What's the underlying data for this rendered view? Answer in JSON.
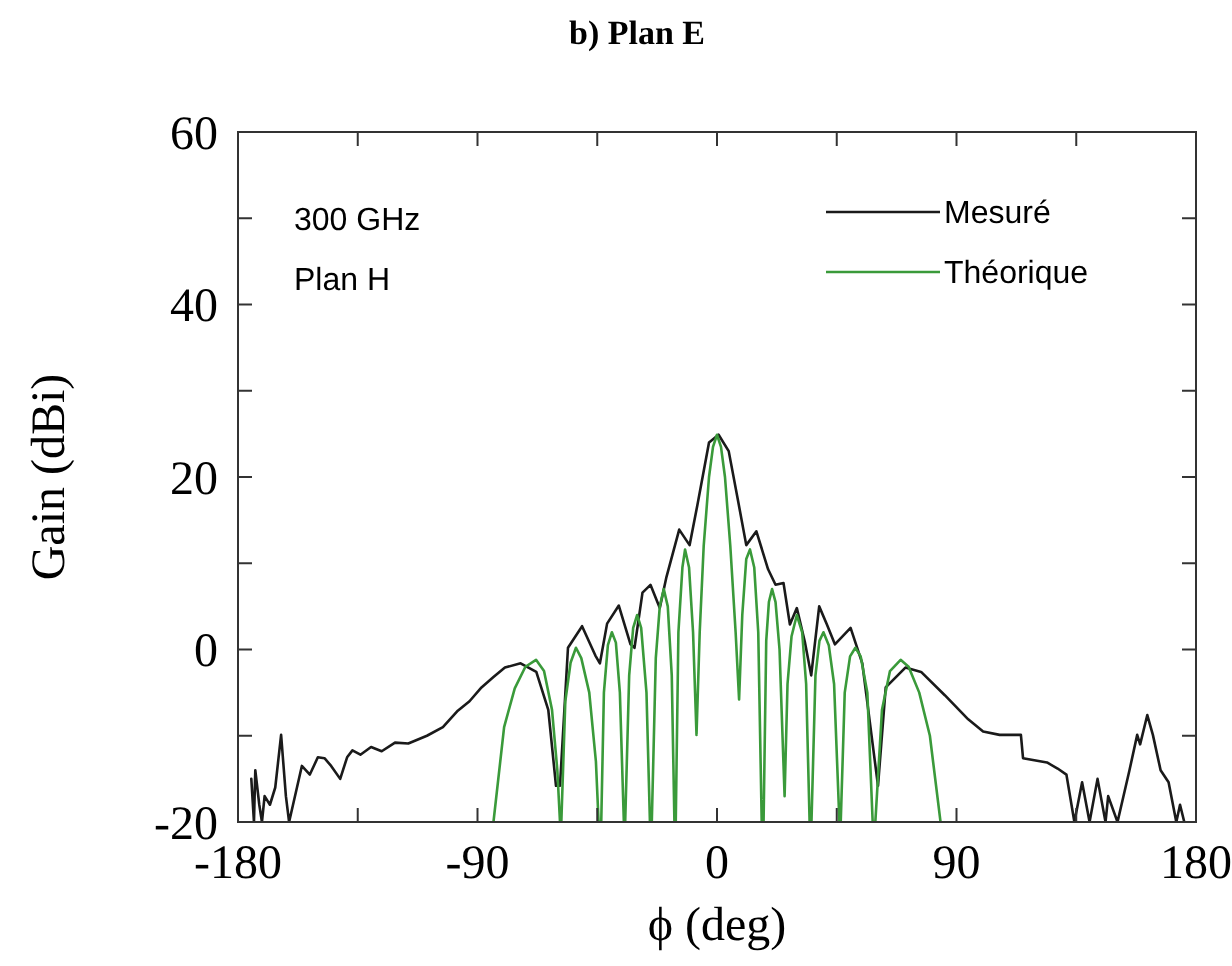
{
  "chart_data": {
    "type": "line",
    "title": "b) Plan E",
    "xlabel": "ϕ (deg)",
    "ylabel": "Gain (dBi)",
    "annotations": [
      "300 GHz",
      "Plan H"
    ],
    "xlim": [
      -180,
      180
    ],
    "ylim": [
      -20,
      60
    ],
    "xticks": [
      -180,
      {
        "value": -135,
        "label": null
      },
      -90,
      {
        "value": -45,
        "label": null
      },
      0,
      {
        "value": 45,
        "label": null
      },
      90,
      {
        "value": 135,
        "label": null
      },
      180
    ],
    "yticks": [
      -20,
      {
        "value": -10,
        "label": null
      },
      0,
      {
        "value": 10,
        "label": null
      },
      20,
      {
        "value": 30,
        "label": null
      },
      40,
      {
        "value": 50,
        "label": null
      },
      60
    ],
    "grid": false,
    "legend": "top right",
    "marker": "none",
    "line_style": "solid",
    "series": [
      {
        "name": "Mesuré",
        "color": "#1a1a1a",
        "x": [
          -175,
          -174,
          -173.5,
          -172,
          -171,
          -170,
          -168,
          -166,
          -163.8,
          -162,
          -160.8,
          -156,
          -153,
          -150,
          -147.5,
          -145,
          -141.6,
          -139,
          -137,
          -134,
          -130,
          -126,
          -121,
          -116,
          -109,
          -103,
          -97.4,
          -93,
          -88.5,
          -84,
          -79.7,
          -73.8,
          -67.9,
          -63.4,
          -60.5,
          -59,
          -56,
          -50.7,
          -45.7,
          -44,
          -41.3,
          -36.9,
          -32.5,
          -31,
          -28,
          -25,
          -21.5,
          -19,
          -14.2,
          -10.3,
          -7.4,
          -3,
          0.6,
          4.4,
          8,
          11,
          14.8,
          19.2,
          22,
          25,
          27.4,
          30,
          33,
          35.4,
          38.4,
          41.3,
          44.3,
          50.2,
          54.6,
          60.5,
          63.4,
          70.8,
          76.7,
          85.6,
          94.4,
          100,
          106.2,
          114.2,
          115,
          124,
          128,
          131.3,
          134.3,
          137.2,
          140,
          143,
          146,
          147,
          150.5,
          152,
          155,
          157.9,
          159,
          161.7,
          163.8,
          166.7,
          169.7,
          172.6,
          174,
          175.6
        ],
        "values": [
          -15,
          -20,
          -14,
          -18,
          -20,
          -17,
          -18,
          -16,
          -9.9,
          -17,
          -20,
          -13.5,
          -14.5,
          -12.5,
          -12.6,
          -13.5,
          -15,
          -12.5,
          -11.7,
          -12.2,
          -11.3,
          -11.8,
          -10.8,
          -10.9,
          -10,
          -9,
          -7.1,
          -6,
          -4.4,
          -3.2,
          -2.1,
          -1.6,
          -2.6,
          -7,
          -15.8,
          -15.8,
          0.2,
          2.7,
          -0.7,
          -1.6,
          3,
          5.1,
          0.6,
          0.2,
          6.6,
          7.5,
          4.8,
          8.4,
          13.9,
          12.1,
          16.7,
          24,
          24.9,
          23,
          17.1,
          12.1,
          13.7,
          9.3,
          7.5,
          7.7,
          2.9,
          4.8,
          0.9,
          -3,
          5,
          2.9,
          0.6,
          2.5,
          -1.6,
          -15.8,
          -4.4,
          -2.1,
          -2.6,
          -5.3,
          -8.1,
          -9.5,
          -9.9,
          -9.9,
          -12.6,
          -13.1,
          -13.8,
          -14.5,
          -20,
          -15.4,
          -20,
          -15,
          -20,
          -17,
          -20,
          -18,
          -14,
          -9.9,
          -11,
          -7.6,
          -9.9,
          -14,
          -15.4,
          -20,
          -18,
          -20
        ]
      },
      {
        "name": "Théorique",
        "color": "#3a9a3a",
        "x": [
          -84,
          -80,
          -76,
          -72,
          -68,
          -65,
          -62,
          -60,
          -59,
          -58.5,
          -57,
          -55,
          -53,
          -51,
          -48,
          -45.5,
          -44.5,
          -43.5,
          -42.5,
          -41,
          -39.5,
          -38,
          -36.5,
          -35,
          -34.5,
          -33,
          -31.5,
          -30,
          -28.5,
          -26.5,
          -25.2,
          -24.5,
          -23,
          -21.5,
          -20,
          -18.5,
          -17,
          -16,
          -15.5,
          -14.5,
          -13,
          -12,
          -10.5,
          -9,
          -7.7,
          -6.5,
          -5,
          -3,
          -1.5,
          0,
          1.5,
          3,
          5,
          7,
          8.3,
          9.5,
          11,
          12.4,
          14,
          15.5,
          16.8,
          17.5,
          18.5,
          19.5,
          20.7,
          22,
          23.5,
          25.4,
          26.5,
          28,
          30,
          32,
          33.5,
          34.8,
          35.5,
          37,
          38.5,
          40,
          42,
          44,
          46,
          46.5,
          48,
          50,
          52,
          54,
          56.5,
          58.5,
          59.5,
          62,
          65,
          69,
          72,
          76,
          80,
          84
        ],
        "values": [
          -20,
          -9,
          -4.5,
          -2,
          -1.2,
          -2.5,
          -7,
          -14,
          -20,
          -20,
          -6,
          -1.5,
          0.2,
          -1,
          -5,
          -13,
          -20,
          -20,
          -5,
          0.5,
          2,
          0.8,
          -5,
          -20,
          -20,
          -3,
          2.5,
          4,
          2.5,
          -5,
          -20,
          -20,
          -1,
          5,
          7,
          5,
          -3,
          -20,
          -20,
          2,
          9.5,
          11.6,
          9.5,
          2,
          -9.9,
          2,
          12,
          20,
          23.5,
          24.9,
          23.5,
          20,
          12,
          2,
          -5.8,
          4,
          10.5,
          11.6,
          9.5,
          2,
          -20,
          -20,
          1,
          5.5,
          7,
          5.5,
          0,
          -17,
          -4,
          1.5,
          4,
          2,
          -4,
          -20,
          -20,
          -3,
          1,
          2,
          0.5,
          -4,
          -20,
          -20,
          -5,
          -0.8,
          0.2,
          -0.8,
          -5,
          -20,
          -20,
          -7,
          -2.5,
          -1.2,
          -2,
          -5,
          -10,
          -20
        ]
      }
    ]
  }
}
